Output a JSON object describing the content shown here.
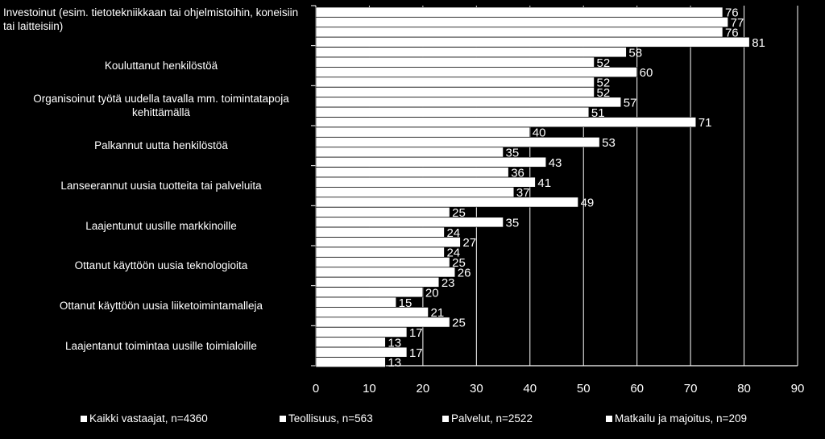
{
  "chart_data": {
    "type": "bar",
    "orientation": "horizontal",
    "categories": [
      "Investoinut  (esim. tietotekniikkaan tai ohjelmistoihin, koneisiin tai laitteisiin)",
      "Kouluttanut henkilöstöä",
      "Organisoinut työtä uudella tavalla mm. toimintatapoja kehittämällä",
      "Palkannut uutta henkilöstöä",
      "Lanseerannut uusia tuotteita tai palveluita",
      "Laajentunut uusille markkinoille",
      "Ottanut käyttöön uusia teknologioita",
      "Ottanut käyttöön uusia liiketoimintamalleja",
      "Laajentanut toimintaa uusille toimialoille"
    ],
    "category_lines": [
      [
        "Investoinut  (esim. tietotekniikkaan tai ohjelmistoihin, koneisiin",
        "tai laitteisiin)"
      ],
      [
        "Kouluttanut henkilöstöä"
      ],
      [
        "Organisoinut työtä uudella tavalla mm. toimintatapoja",
        "kehittämällä"
      ],
      [
        "Palkannut uutta henkilöstöä"
      ],
      [
        "Lanseerannut uusia tuotteita tai palveluita"
      ],
      [
        "Laajentunut uusille markkinoille"
      ],
      [
        "Ottanut käyttöön uusia teknologioita"
      ],
      [
        "Ottanut käyttöön uusia liiketoimintamalleja"
      ],
      [
        "Laajentanut toimintaa uusille toimialoille"
      ]
    ],
    "series": [
      {
        "name": "Kaikki vastaajat, n=4360",
        "values": [
          76,
          58,
          52,
          40,
          36,
          25,
          24,
          20,
          17
        ]
      },
      {
        "name": "Teollisuus, n=563",
        "values": [
          77,
          52,
          57,
          53,
          41,
          35,
          25,
          15,
          13
        ]
      },
      {
        "name": "Palvelut, n=2522",
        "values": [
          76,
          60,
          51,
          35,
          37,
          24,
          26,
          21,
          17
        ]
      },
      {
        "name": "Matkailu ja majoitus, n=209",
        "values": [
          81,
          52,
          71,
          43,
          49,
          27,
          23,
          25,
          13
        ]
      }
    ],
    "xlim": [
      0,
      90
    ],
    "xticks": [
      "0",
      "10",
      "20",
      "30",
      "40",
      "50",
      "60",
      "70",
      "80",
      "90"
    ],
    "grid": true,
    "legend_position": "bottom",
    "bar_color": "#ffffff",
    "background": "#000000"
  }
}
